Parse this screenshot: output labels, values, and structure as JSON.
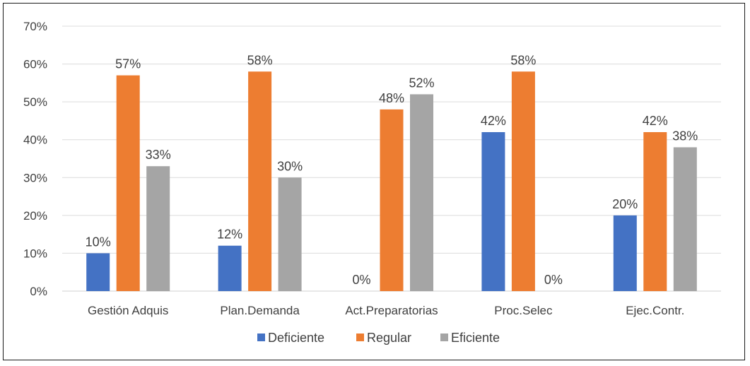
{
  "chart_data": {
    "type": "bar",
    "categories": [
      "Gestión Adquis",
      "Plan.Demanda",
      "Act.Preparatorias",
      "Proc.Selec",
      "Ejec.Contr."
    ],
    "series": [
      {
        "name": "Deficiente",
        "color": "#4472C4",
        "values": [
          10,
          12,
          0,
          42,
          20
        ],
        "labels": [
          "10%",
          "12%",
          "0%",
          "42%",
          "20%"
        ]
      },
      {
        "name": "Regular",
        "color": "#ED7D31",
        "values": [
          57,
          58,
          48,
          58,
          42
        ],
        "labels": [
          "57%",
          "58%",
          "48%",
          "58%",
          "42%"
        ]
      },
      {
        "name": "Eficiente",
        "color": "#A5A5A5",
        "values": [
          33,
          30,
          52,
          0,
          38
        ],
        "labels": [
          "33%",
          "30%",
          "52%",
          "0%",
          "38%"
        ]
      }
    ],
    "ylim": [
      0,
      70
    ],
    "yticks": [
      "0%",
      "10%",
      "20%",
      "30%",
      "40%",
      "50%",
      "60%",
      "70%"
    ],
    "grid": true,
    "legend_position": "bottom"
  }
}
